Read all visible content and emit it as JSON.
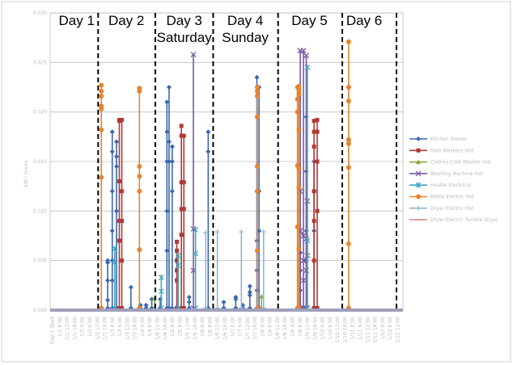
{
  "chart_data": {
    "type": "line",
    "title": "",
    "xlabel": "",
    "ylabel": "kW / Hours",
    "ylim": [
      0,
      0.03
    ],
    "y_ticks": [
      "0.000",
      "0.005",
      "0.010",
      "0.015",
      "0.020",
      "0.025",
      "0.030"
    ],
    "x_categories": [
      "Day 1 Start",
      "1/1 6:00",
      "1/1 12:00",
      "1/1 18:00",
      "1/2 0:00",
      "1/2 6:00",
      "1/2 12:00",
      "1/2 18:00",
      "1/3 0:00",
      "1/3 6:00",
      "1/3 12:00",
      "1/3 18:00",
      "1/4 0:00",
      "1/4 6:00",
      "1/4 12:00",
      "1/4 18:00",
      "1/5 0:00",
      "1/5 6:00",
      "1/5 12:00",
      "1/5 18:00",
      "1/6 0:00",
      "1/6 6:00",
      "1/6 12:00",
      "1/6 18:00",
      "1/7 0:00",
      "1/7 6:00",
      "1/7 12:00",
      "1/7 18:00",
      "1/8 0:00",
      "1/8 6:00",
      "1/8 12:00",
      "1/8 18:00",
      "1/9 0:00",
      "1/9 6:00",
      "1/9 12:00",
      "1/9 18:00",
      "1/10 0:00",
      "1/10 6:00",
      "1/10 12:00",
      "1/10 18:00",
      "1/11 0:00",
      "1/11 6:00",
      "1/11 12:00",
      "1/11 18:00",
      "1/12 0:00",
      "1/12 6:00",
      "1/12 12:00"
    ],
    "x_range": [
      0,
      1
    ],
    "day_boundaries": [
      0.136,
      0.298,
      0.462,
      0.646,
      0.828
    ],
    "day_labels": [
      {
        "line1": "Day 1",
        "line2": "",
        "center": 0.075
      },
      {
        "line1": "Day 2",
        "line2": "",
        "center": 0.216
      },
      {
        "line1": "Day 3",
        "line2": "Saturday",
        "center": 0.38
      },
      {
        "line1": "Day 4",
        "line2": "Sunday",
        "center": 0.553
      },
      {
        "line1": "Day 5",
        "line2": "",
        "center": 0.735
      },
      {
        "line1": "Day 6",
        "line2": "",
        "center": 0.89
      }
    ],
    "series": [
      {
        "name": "Kitchen Stoves",
        "color": "#3a67b0",
        "marker": "diamond",
        "spikes": [
          {
            "x": 0.163,
            "values": [
              0.0002,
              0.005,
              0.0048,
              0.003,
              0.001
            ]
          },
          {
            "x": 0.176,
            "values": [
              0.0002,
              0.018,
              0.016,
              0.012,
              0.008,
              0.005,
              0.003
            ]
          },
          {
            "x": 0.188,
            "values": [
              0.0002,
              0.017,
              0.0155,
              0.0145,
              0.01
            ]
          },
          {
            "x": 0.229,
            "values": [
              0.0002,
              0.0023
            ]
          },
          {
            "x": 0.256,
            "values": [
              0.0002,
              0.0005
            ]
          },
          {
            "x": 0.272,
            "values": [
              0.0002,
              0.0005
            ]
          },
          {
            "x": 0.288,
            "values": [
              0.0002,
              0.0011
            ]
          },
          {
            "x": 0.312,
            "values": [
              0.0002,
              0.0011
            ]
          },
          {
            "x": 0.331,
            "values": [
              0.0002,
              0.021,
              0.018,
              0.015,
              0.01,
              0.006
            ]
          },
          {
            "x": 0.337,
            "values": [
              0.0002,
              0.0225,
              0.017,
              0.015
            ]
          },
          {
            "x": 0.346,
            "values": [
              0.0002,
              0.0165,
              0.015,
              0.012
            ]
          },
          {
            "x": 0.394,
            "values": [
              0.0002,
              0.0008,
              0.0013
            ]
          },
          {
            "x": 0.448,
            "values": [
              0.0002,
              0.018,
              0.016
            ]
          },
          {
            "x": 0.492,
            "values": [
              0.0002,
              0.0008
            ]
          },
          {
            "x": 0.526,
            "values": [
              0.0002,
              0.0011,
              0.0013
            ]
          },
          {
            "x": 0.546,
            "values": [
              0.0002,
              0.0005
            ]
          },
          {
            "x": 0.566,
            "values": [
              0.0002,
              0.0024,
              0.0018,
              0.0015
            ]
          },
          {
            "x": 0.586,
            "values": [
              0.0002,
              0.0235,
              0.012,
              0.007,
              0.004,
              0.002
            ]
          },
          {
            "x": 0.592,
            "values": [
              0.0002,
              0.0225,
              0.012,
              0.008
            ]
          },
          {
            "x": 0.709,
            "values": [
              0.0002,
              0.0058,
              0.004,
              0.002
            ]
          },
          {
            "x": 0.726,
            "values": [
              0.0002,
              0.0195,
              0.014,
              0.008,
              0.005
            ]
          },
          {
            "x": 0.748,
            "values": [
              0.0002,
              0.015,
              0.012,
              0.008
            ]
          }
        ]
      },
      {
        "name": "Dish Washers Hot",
        "color": "#b03a35",
        "marker": "square",
        "spikes": [
          {
            "x": 0.196,
            "values": [
              0.0002,
              0.0192,
              0.0191,
              0.013,
              0.009,
              0.007
            ]
          },
          {
            "x": 0.203,
            "values": [
              0.0002,
              0.0192,
              0.012,
              0.009,
              0.005
            ]
          },
          {
            "x": 0.359,
            "values": [
              0.0002,
              0.0069,
              0.006,
              0.005,
              0.004,
              0.003
            ]
          },
          {
            "x": 0.372,
            "values": [
              0.0002,
              0.0186,
              0.0176,
              0.0129,
              0.0102,
              0.0076
            ]
          },
          {
            "x": 0.379,
            "values": [
              0.0002,
              0.0176,
              0.0129,
              0.0102
            ]
          },
          {
            "x": 0.748,
            "values": [
              0.0002,
              0.0191,
              0.018,
              0.0165,
              0.012,
              0.009,
              0.005
            ]
          },
          {
            "x": 0.757,
            "values": [
              0.0002,
              0.0192,
              0.018,
              0.015,
              0.01
            ]
          }
        ]
      },
      {
        "name": "Clothes Cold Washer Hot",
        "color": "#86a83a",
        "marker": "triangle",
        "spikes": [
          {
            "x": 0.296,
            "values": [
              0.0002,
              0.0012
            ]
          },
          {
            "x": 0.599,
            "values": [
              0.0002,
              0.0014
            ]
          }
        ]
      },
      {
        "name": "Washing Machine Hot",
        "color": "#7a5a9e",
        "marker": "x",
        "spikes": [
          {
            "x": 0.406,
            "values": [
              0.0002,
              0.0258,
              0.0082,
              0.004
            ]
          },
          {
            "x": 0.709,
            "values": [
              0.0002,
              0.0262,
              0.012,
              0.008
            ]
          },
          {
            "x": 0.718,
            "values": [
              0.0002,
              0.0262,
              0.0075,
              0.005,
              0.003
            ]
          },
          {
            "x": 0.726,
            "values": [
              0.0002,
              0.0257,
              0.0072,
              0.004
            ]
          },
          {
            "x": 0.729,
            "values": [
              0.0002,
              0.011,
              0.0055
            ]
          }
        ]
      },
      {
        "name": "Heater Electrical",
        "color": "#3fa6c2",
        "marker": "star",
        "spikes": [
          {
            "x": 0.183,
            "values": [
              0.0002,
              0.0062,
              0.0048
            ]
          },
          {
            "x": 0.315,
            "values": [
              0.0002,
              0.0033,
              0.0019
            ]
          },
          {
            "x": 0.363,
            "values": [
              0.0002,
              0.0055,
              0.0045
            ]
          },
          {
            "x": 0.412,
            "values": [
              0.0002,
              0.0081,
              0.0057
            ]
          },
          {
            "x": 0.729,
            "values": [
              0.0002,
              0.0245,
              0.007
            ]
          }
        ]
      },
      {
        "name": "Kettle Electric Hot",
        "color": "#e8832e",
        "marker": "circle",
        "spikes": [
          {
            "x": 0.145,
            "values": [
              0.0002,
              0.0227,
              0.0221,
              0.0216,
              0.0206,
              0.0203,
              0.0182,
              0.0134
            ]
          },
          {
            "x": 0.253,
            "values": [
              0.0002,
              0.0224,
              0.0221,
              0.0145,
              0.0135,
              0.012,
              0.0061
            ]
          },
          {
            "x": 0.587,
            "values": [
              0.0002,
              0.0225,
              0.0221,
              0.0216,
              0.0195,
              0.0145,
              0.012,
              0.006
            ]
          },
          {
            "x": 0.705,
            "values": [
              0.0002,
              0.0226,
              0.0222,
              0.0218,
              0.0182,
              0.0143,
              0.0124,
              0.0062
            ]
          },
          {
            "x": 0.701,
            "values": [
              0.0002,
              0.0225,
              0.0213,
              0.02,
              0.0146,
              0.0084
            ]
          },
          {
            "x": 0.846,
            "values": [
              0.0002,
              0.0271,
              0.0225,
              0.0211,
              0.0172,
              0.0168,
              0.0144,
              0.0067
            ]
          }
        ]
      },
      {
        "name": "Dryer Electric Hot",
        "color": "#8fb4d6",
        "marker": "plus",
        "spikes": [
          {
            "x": 0.441,
            "values": [
              0.0002,
              0.0078
            ]
          },
          {
            "x": 0.474,
            "values": [
              0.0002,
              0.0079
            ]
          },
          {
            "x": 0.542,
            "values": [
              0.0002,
              0.0079
            ]
          },
          {
            "x": 0.605,
            "values": [
              0.0002,
              0.0079
            ]
          }
        ]
      },
      {
        "name": "Dryer Electric Tumble Dryer",
        "color": "#d98a8a",
        "marker": "line",
        "spikes": []
      }
    ],
    "legend": {
      "position": "right",
      "entries": [
        "Kitchen Stoves",
        "Dish Washers Hot",
        "Clothes Cold Washer Hot",
        "Washing Machine Hot",
        "Heater Electrical",
        "Kettle Electric Hot",
        "Dryer Electric Hot",
        "Dryer Electric Tumble Dryer"
      ]
    },
    "grid": true
  }
}
